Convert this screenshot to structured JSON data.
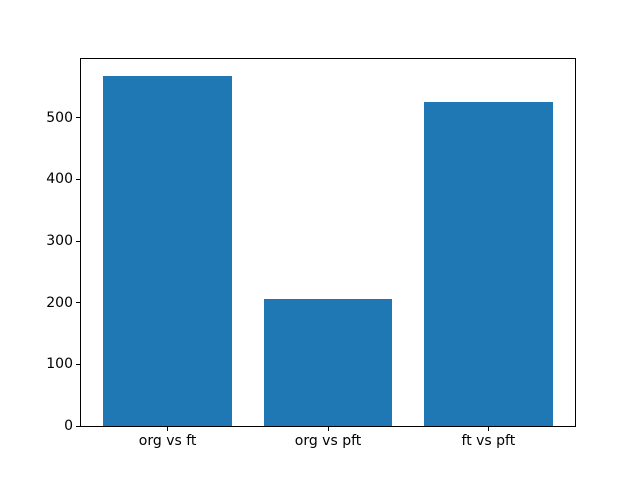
{
  "chart_data": {
    "type": "bar",
    "categories": [
      "org vs ft",
      "org vs pft",
      "ft vs pft"
    ],
    "values": [
      567,
      206,
      525
    ],
    "title": "",
    "xlabel": "",
    "ylabel": "",
    "yticks": [
      0,
      100,
      200,
      300,
      400,
      500
    ],
    "ytick_labels": [
      "0",
      "100",
      "200",
      "300",
      "400",
      "500"
    ],
    "ylim": [
      0,
      595.35
    ],
    "xlim": [
      -0.54,
      2.54
    ],
    "bar_width": 0.8,
    "bar_color": "#1f77b4",
    "spine_color": "#000000",
    "background_color": "#ffffff",
    "grid": false,
    "legend": null
  }
}
